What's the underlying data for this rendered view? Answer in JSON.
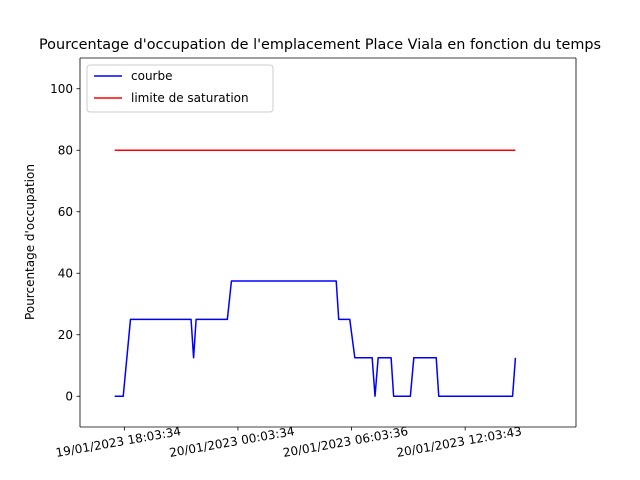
{
  "chart_data": {
    "type": "line",
    "title": "Pourcentage d'occupation de l'emplacement Place Viala en fonction du temps",
    "xlabel": "",
    "ylabel": "Pourcentage d'occupation",
    "ylim": [
      -10,
      110
    ],
    "yticks": [
      0,
      20,
      40,
      60,
      80,
      100
    ],
    "xticks": [
      {
        "label": "19/01/2023 18:03:34",
        "t": "2023-01-19T18:03:34"
      },
      {
        "label": "20/01/2023 00:03:34",
        "t": "2023-01-20T00:03:34"
      },
      {
        "label": "20/01/2023 06:03:36",
        "t": "2023-01-20T06:03:36"
      },
      {
        "label": "20/01/2023 12:03:43",
        "t": "2023-01-20T12:03:43"
      }
    ],
    "xlim": [
      "2023-01-19T15:43:00",
      "2023-01-20T17:55:00"
    ],
    "legend_position": "upper left",
    "grid": false,
    "series": [
      {
        "name": "courbe",
        "color": "#0000ff",
        "points": [
          [
            "2023-01-19T17:33:00",
            0
          ],
          [
            "2023-01-19T18:00:00",
            0
          ],
          [
            "2023-01-19T18:23:00",
            25
          ],
          [
            "2023-01-19T21:35:00",
            25
          ],
          [
            "2023-01-19T21:43:00",
            12.5
          ],
          [
            "2023-01-19T21:51:00",
            25
          ],
          [
            "2023-01-19T23:30:00",
            25
          ],
          [
            "2023-01-19T23:43:00",
            37.5
          ],
          [
            "2023-01-20T05:15:00",
            37.5
          ],
          [
            "2023-01-20T05:23:00",
            25
          ],
          [
            "2023-01-20T05:58:00",
            25
          ],
          [
            "2023-01-20T06:14:00",
            12.5
          ],
          [
            "2023-01-20T07:09:00",
            12.5
          ],
          [
            "2023-01-20T07:18:00",
            0
          ],
          [
            "2023-01-20T07:28:00",
            12.5
          ],
          [
            "2023-01-20T08:09:00",
            12.5
          ],
          [
            "2023-01-20T08:17:00",
            0
          ],
          [
            "2023-01-20T09:10:00",
            0
          ],
          [
            "2023-01-20T09:21:00",
            12.5
          ],
          [
            "2023-01-20T10:32:00",
            12.5
          ],
          [
            "2023-01-20T10:40:00",
            0
          ],
          [
            "2023-01-20T14:34:00",
            0
          ],
          [
            "2023-01-20T14:43:00",
            12.5
          ]
        ]
      },
      {
        "name": "limite de saturation",
        "color": "#ff0000",
        "points": [
          [
            "2023-01-19T17:33:00",
            80
          ],
          [
            "2023-01-20T14:43:00",
            80
          ]
        ]
      }
    ]
  }
}
